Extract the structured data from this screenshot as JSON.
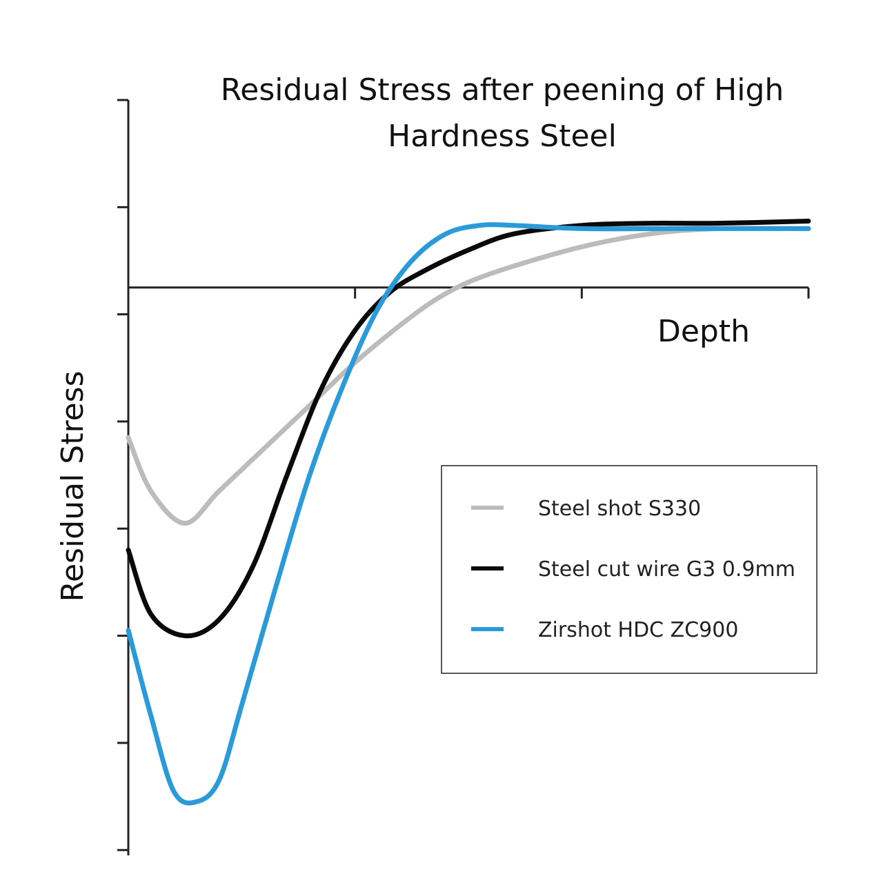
{
  "chart_data": {
    "type": "line",
    "title": "Residual Stress after peening of High Hardness Steel",
    "title_lines": [
      "Residual Stress after peening of High",
      "Hardness Steel"
    ],
    "xlabel": "Depth",
    "ylabel": "Residual Stress",
    "xlim": [
      0,
      3
    ],
    "ylim": [
      -5.3,
      1.75
    ],
    "x_ticks": [
      0,
      1,
      2,
      3
    ],
    "y_ticks": [
      1.75,
      0.75,
      -0.25,
      -1.25,
      -2.25,
      -3.25,
      -4.25,
      -5.25
    ],
    "grid": false,
    "legend_position": "right",
    "series": [
      {
        "name": "Steel shot S330",
        "color": "#bcbcbc",
        "x": [
          0.0,
          0.1,
          0.25,
          0.4,
          0.6,
          0.8,
          1.0,
          1.2,
          1.35,
          1.5,
          1.7,
          2.0,
          2.3,
          2.6,
          3.0
        ],
        "y": [
          -1.4,
          -1.9,
          -2.2,
          -1.9,
          -1.5,
          -1.1,
          -0.7,
          -0.35,
          -0.12,
          0.05,
          0.2,
          0.38,
          0.5,
          0.55,
          0.55
        ]
      },
      {
        "name": "Steel cut wire G3 0.9mm",
        "color": "#0a0a0a",
        "x": [
          0.0,
          0.1,
          0.25,
          0.4,
          0.55,
          0.7,
          0.85,
          1.0,
          1.15,
          1.3,
          1.5,
          1.7,
          2.0,
          2.3,
          2.6,
          3.0
        ],
        "y": [
          -2.45,
          -3.05,
          -3.25,
          -3.1,
          -2.6,
          -1.75,
          -0.95,
          -0.4,
          -0.05,
          0.15,
          0.35,
          0.5,
          0.58,
          0.6,
          0.6,
          0.62
        ]
      },
      {
        "name": "Zirshot HDC ZC900",
        "color": "#2b9ad9",
        "x": [
          0.0,
          0.1,
          0.2,
          0.3,
          0.4,
          0.5,
          0.65,
          0.8,
          0.95,
          1.1,
          1.25,
          1.4,
          1.55,
          1.7,
          2.0,
          2.4,
          3.0
        ],
        "y": [
          -3.2,
          -4.0,
          -4.7,
          -4.8,
          -4.6,
          -3.9,
          -2.8,
          -1.75,
          -0.9,
          -0.2,
          0.25,
          0.5,
          0.58,
          0.58,
          0.55,
          0.55,
          0.55
        ]
      }
    ]
  }
}
